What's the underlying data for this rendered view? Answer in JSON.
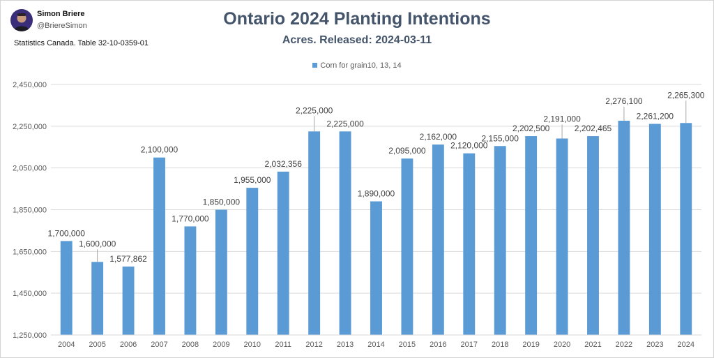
{
  "author": {
    "name": "Simon Briere",
    "handle": "@BriereSimon"
  },
  "source": "Statistics Canada. Table 32-10-0359-01",
  "colors": {
    "bar": "#5b9bd5",
    "title": "#44546a",
    "grid": "#d9d9d9",
    "label": "#404040",
    "tick": "#595959"
  },
  "chart_data": {
    "type": "bar",
    "title": "Ontario 2024 Planting Intentions",
    "subtitle": "Acres. Released: 2024-03-11",
    "xlabel": "",
    "ylabel": "",
    "categories": [
      "2004",
      "2005",
      "2006",
      "2007",
      "2008",
      "2009",
      "2010",
      "2011",
      "2012",
      "2013",
      "2014",
      "2015",
      "2016",
      "2017",
      "2018",
      "2019",
      "2020",
      "2021",
      "2022",
      "2023",
      "2024"
    ],
    "series": [
      {
        "name": "Corn for grain10, 13, 14",
        "values": [
          1700000,
          1600000,
          1577862,
          2100000,
          1770000,
          1850000,
          1955000,
          2032356,
          2225000,
          2225000,
          1890000,
          2095000,
          2162000,
          2120000,
          2155000,
          2202500,
          2191000,
          2202465,
          2276100,
          2261200,
          2265300
        ],
        "labels": [
          "1,700,000",
          "1,600,000",
          "1,577,862",
          "2,100,000",
          "1,770,000",
          "1,850,000",
          "1,955,000",
          "2,032,356",
          "2,225,000",
          "2,225,000",
          "1,890,000",
          "2,095,000",
          "2,162,000",
          "2,120,000",
          "2,155,000",
          "2,202,500",
          "2,191,000",
          "2,202,465",
          "2,276,100",
          "2,261,200",
          "2,265,300"
        ]
      }
    ],
    "ylim": [
      1250000,
      2450000
    ],
    "yticks": [
      1250000,
      1450000,
      1650000,
      1850000,
      2050000,
      2250000,
      2450000
    ],
    "ytick_labels": [
      "1,250,000",
      "1,450,000",
      "1,650,000",
      "1,850,000",
      "2,050,000",
      "2,250,000",
      "2,450,000"
    ],
    "grid": true,
    "legend_position": "top-center"
  }
}
